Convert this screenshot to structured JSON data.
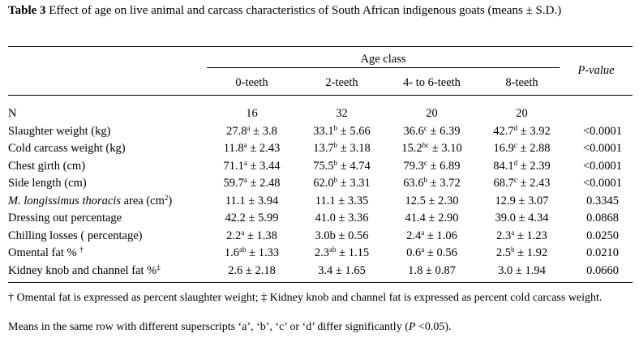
{
  "caption": {
    "label": "Table 3",
    "text": "Effect of age on live animal and carcass characteristics of South African indigenous goats (means ± S.D.)"
  },
  "header": {
    "age_class": "Age class",
    "columns": [
      "0-teeth",
      "2-teeth",
      "4- to 6-teeth",
      "8-teeth"
    ],
    "p_value": "P-value"
  },
  "rows": [
    {
      "label": "N",
      "cells": [
        {
          "v": "16",
          "s": "",
          "sd": ""
        },
        {
          "v": "32",
          "s": "",
          "sd": ""
        },
        {
          "v": "20",
          "s": "",
          "sd": ""
        },
        {
          "v": "20",
          "s": "",
          "sd": ""
        }
      ],
      "p": ""
    },
    {
      "label": "Slaughter weight (kg)",
      "cells": [
        {
          "v": "27.8",
          "s": "a",
          "sd": " ± 3.8"
        },
        {
          "v": "33.1",
          "s": "b",
          "sd": " ± 5.66"
        },
        {
          "v": "36.6",
          "s": "c",
          "sd": " ± 6.39"
        },
        {
          "v": "42.7",
          "s": "d",
          "sd": " ± 3.92"
        }
      ],
      "p": "<0.0001"
    },
    {
      "label": "Cold carcass weight (kg)",
      "cells": [
        {
          "v": "11.8",
          "s": "a",
          "sd": " ± 2.43"
        },
        {
          "v": "13.7",
          "s": "b",
          "sd": " ± 3.18"
        },
        {
          "v": "15.2",
          "s": "bc",
          "sd": " ± 3.10"
        },
        {
          "v": "16.9",
          "s": "c",
          "sd": " ± 2.88"
        }
      ],
      "p": "<0.0001"
    },
    {
      "label": "Chest girth (cm)",
      "cells": [
        {
          "v": "71.1",
          "s": "a",
          "sd": " ± 3.44"
        },
        {
          "v": "75.5",
          "s": "b",
          "sd": " ± 4.74"
        },
        {
          "v": "79.3",
          "s": "c",
          "sd": " ± 6.89"
        },
        {
          "v": "84.1",
          "s": "d",
          "sd": " ± 2.39"
        }
      ],
      "p": "<0.0001"
    },
    {
      "label": "Side length (cm)",
      "cells": [
        {
          "v": "59.7",
          "s": "a",
          "sd": " ± 2.48"
        },
        {
          "v": "62.0",
          "s": "b",
          "sd": " ± 3.31"
        },
        {
          "v": "63.6",
          "s": "b",
          "sd": " ± 3.72"
        },
        {
          "v": "68.7",
          "s": "c",
          "sd": " ± 2.43"
        }
      ],
      "p": "<0.0001"
    },
    {
      "label_italic": "M. longissimus thoracis",
      "label": " area (cm",
      "label_sup": "2",
      "label_end": ")",
      "cells": [
        {
          "v": "11.1",
          "s": "",
          "sd": " ± 3.94"
        },
        {
          "v": "11.1",
          "s": "",
          "sd": " ± 3.35"
        },
        {
          "v": "12.5",
          "s": "",
          "sd": " ± 2.30"
        },
        {
          "v": "12.9",
          "s": "",
          "sd": " ± 3.07"
        }
      ],
      "p": "0.3345"
    },
    {
      "label": "Dressing out percentage",
      "cells": [
        {
          "v": "42.2",
          "s": "",
          "sd": " ± 5.99"
        },
        {
          "v": "41.0",
          "s": "",
          "sd": " ± 3.36"
        },
        {
          "v": "41.4",
          "s": "",
          "sd": " ± 2.90"
        },
        {
          "v": "39.0",
          "s": "",
          "sd": " ± 4.34"
        }
      ],
      "p": "0.0868"
    },
    {
      "label": "Chilling losses ( percentage)",
      "cells": [
        {
          "v": "2.2",
          "s": "a",
          "sd": " ± 1.38"
        },
        {
          "v": "3.0b",
          "s": "",
          "sd": " ± 0.56"
        },
        {
          "v": "2.4",
          "s": "a",
          "sd": " ± 1.06"
        },
        {
          "v": "2.3",
          "s": "a",
          "sd": " ± 1.23"
        }
      ],
      "p": "0.0250"
    },
    {
      "label": "Omental fat % ",
      "label_sup": "†",
      "cells": [
        {
          "v": "1.6",
          "s": "ab",
          "sd": " ± 1.33"
        },
        {
          "v": "2.3",
          "s": "ab",
          "sd": " ± 1.15"
        },
        {
          "v": "0.6",
          "s": "a",
          "sd": " ± 0.56"
        },
        {
          "v": "2.5",
          "s": "b",
          "sd": " ± 1.92"
        }
      ],
      "p": "0.0210"
    },
    {
      "label": "Kidney knob and channel fat %",
      "label_sup": "‡",
      "cells": [
        {
          "v": "2.6",
          "s": "",
          "sd": " ± 2.18"
        },
        {
          "v": "3.4",
          "s": "",
          "sd": " ± 1.65"
        },
        {
          "v": "1.8",
          "s": "",
          "sd": " ± 0.87"
        },
        {
          "v": "3.0",
          "s": "",
          "sd": " ± 1.94"
        }
      ],
      "p": "0.0660"
    }
  ],
  "footnotes": {
    "line1": "† Omental fat is expressed as percent slaughter weight; ‡ Kidney knob and channel fat is expressed as percent cold carcass weight.",
    "line2_pre": "Means in the same row with different superscripts ‘a’, ‘b’, ‘c’ or ‘d’ differ significantly (",
    "line2_p": "P",
    "line2_post": " <0.05)."
  }
}
